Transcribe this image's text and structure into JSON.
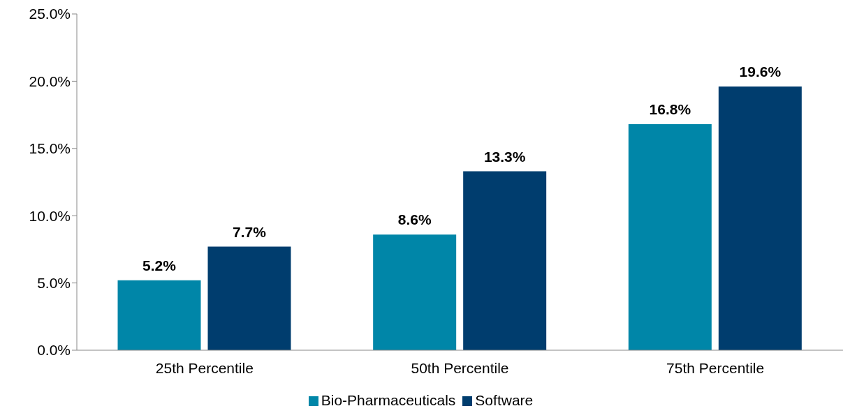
{
  "chart_data": {
    "type": "bar",
    "categories": [
      "25th Percentile",
      "50th Percentile",
      "75th Percentile"
    ],
    "series": [
      {
        "name": "Bio-Pharmaceuticals",
        "color": "#0086a8",
        "values": [
          5.2,
          8.6,
          16.8
        ],
        "value_labels": [
          "5.2%",
          "8.6%",
          "16.8%"
        ]
      },
      {
        "name": "Software",
        "color": "#003d6e",
        "values": [
          7.7,
          13.3,
          19.6
        ],
        "value_labels": [
          "7.7%",
          "13.3%",
          "19.6%"
        ]
      }
    ],
    "ylim": [
      0,
      25
    ],
    "yticks": [
      {
        "value": 0,
        "label": "0.0%"
      },
      {
        "value": 5,
        "label": "5.0%"
      },
      {
        "value": 10,
        "label": "10.0%"
      },
      {
        "value": 15,
        "label": "15.0%"
      },
      {
        "value": 20,
        "label": "20.0%"
      },
      {
        "value": 25,
        "label": "25.0%"
      }
    ],
    "grid": false,
    "legend": "bottom"
  }
}
